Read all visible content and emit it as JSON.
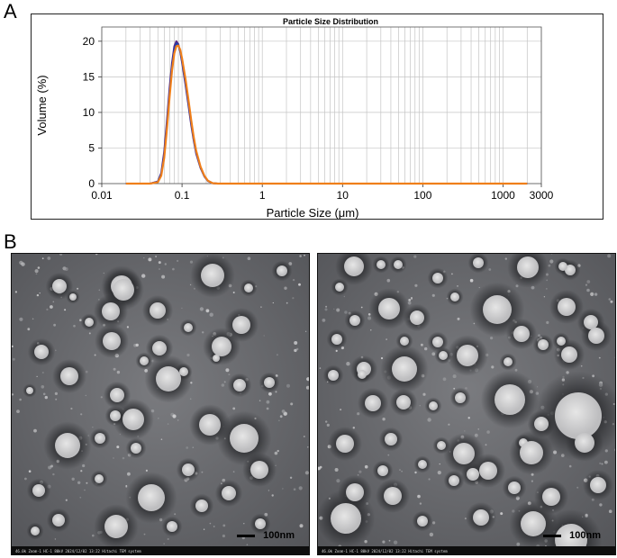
{
  "panels": {
    "a_label": "A",
    "b_label": "B"
  },
  "chart_data": {
    "type": "line",
    "title": "Particle Size Distribution",
    "xlabel": "Particle Size (μm)",
    "ylabel": "Volume (%)",
    "xscale": "log",
    "xlim": [
      0.01,
      3000
    ],
    "ylim": [
      0,
      22
    ],
    "x_ticks": [
      0.01,
      0.1,
      1,
      10,
      100,
      1000,
      3000
    ],
    "x_tick_labels": [
      "0.01",
      "0.1",
      "1",
      "10",
      "100",
      "1000",
      "3000"
    ],
    "y_ticks": [
      0,
      5,
      10,
      15,
      20
    ],
    "y_tick_labels": [
      "0",
      "5",
      "10",
      "15",
      "20"
    ],
    "grid": true,
    "legend": "none",
    "series": [
      {
        "color": "#5b2a86",
        "x": [
          0.02,
          0.04,
          0.05,
          0.055,
          0.06,
          0.065,
          0.07,
          0.075,
          0.08,
          0.085,
          0.09,
          0.095,
          0.1,
          0.11,
          0.12,
          0.13,
          0.14,
          0.15,
          0.17,
          0.19,
          0.21,
          0.24,
          0.28,
          1,
          10,
          100,
          1000,
          2000
        ],
        "y": [
          0,
          0,
          0.3,
          1.5,
          4.5,
          9,
          13.5,
          17,
          19.3,
          20,
          19.6,
          18.5,
          17,
          14,
          11,
          8.2,
          6,
          4.2,
          2.2,
          1,
          0.35,
          0.05,
          0,
          0,
          0,
          0,
          0,
          0
        ]
      },
      {
        "color": "#1f3fae",
        "x": [
          0.02,
          0.04,
          0.05,
          0.055,
          0.06,
          0.065,
          0.07,
          0.075,
          0.08,
          0.085,
          0.09,
          0.095,
          0.1,
          0.11,
          0.12,
          0.13,
          0.14,
          0.15,
          0.17,
          0.19,
          0.21,
          0.24,
          0.28,
          1,
          10,
          100,
          1000,
          2000
        ],
        "y": [
          0,
          0,
          0.25,
          1.3,
          4,
          8.4,
          12.8,
          16.5,
          18.9,
          19.7,
          19.5,
          18.6,
          17.2,
          14.3,
          11.3,
          8.5,
          6.2,
          4.4,
          2.3,
          1.05,
          0.4,
          0.06,
          0,
          0,
          0,
          0,
          0,
          0
        ]
      },
      {
        "color": "#f07f1a",
        "x": [
          0.02,
          0.04,
          0.05,
          0.055,
          0.06,
          0.065,
          0.07,
          0.075,
          0.08,
          0.085,
          0.09,
          0.095,
          0.1,
          0.11,
          0.12,
          0.13,
          0.14,
          0.15,
          0.17,
          0.19,
          0.21,
          0.24,
          0.28,
          1,
          10,
          100,
          1000,
          2000
        ],
        "y": [
          0,
          0,
          0.2,
          1.1,
          3.6,
          7.8,
          12.2,
          15.9,
          18.3,
          19.3,
          19.4,
          18.8,
          17.6,
          14.8,
          11.8,
          8.9,
          6.5,
          4.6,
          2.4,
          1.1,
          0.4,
          0.06,
          0,
          0,
          0,
          0,
          0,
          0
        ]
      }
    ]
  },
  "tem": {
    "left": {
      "scale_label": "100nm",
      "footer": "46.0k Zoom-1 HC-1 80kV 2024/12/02 13:22 Hitachi TEM system"
    },
    "right": {
      "scale_label": "100nm",
      "footer": "46.0k Zoom-1 HC-1 80kV 2024/12/02 13:22 Hitachi TEM system"
    }
  }
}
